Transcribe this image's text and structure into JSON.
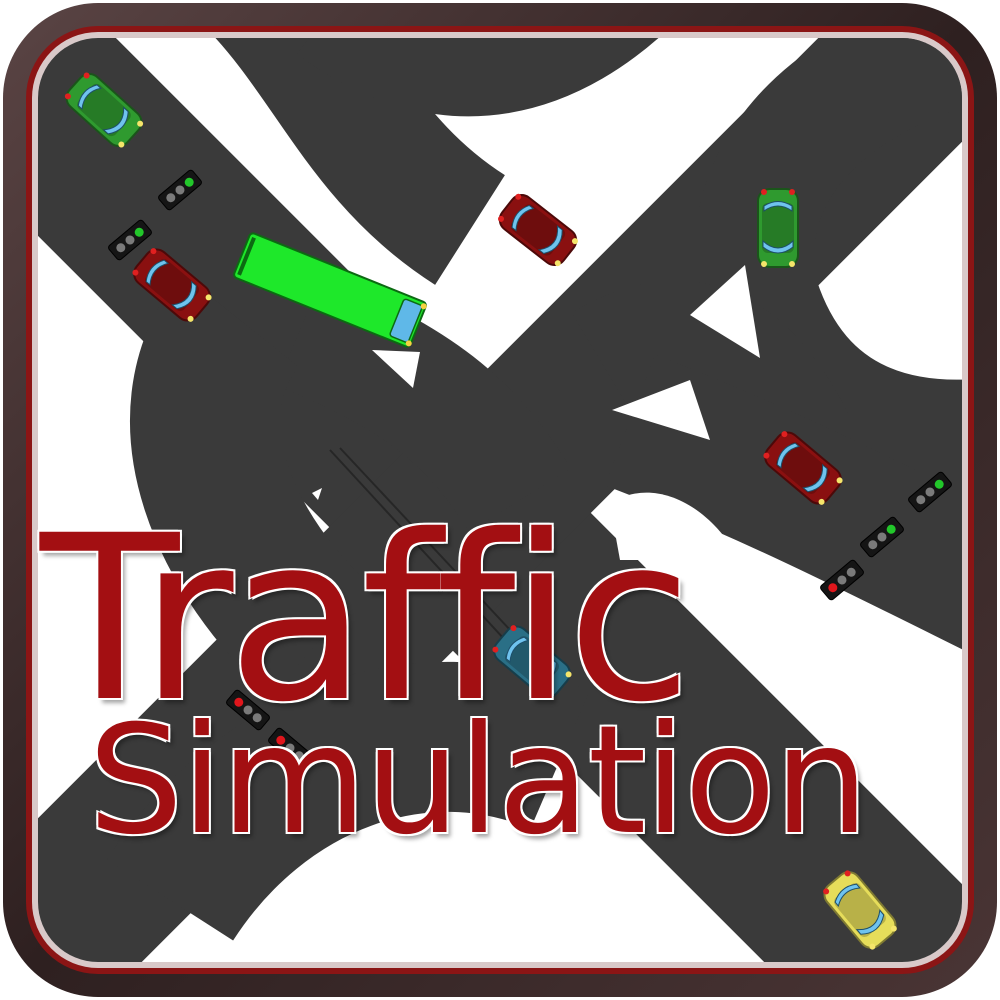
{
  "title": {
    "line1": "Traffic",
    "line2": "Simulation"
  },
  "colors": {
    "frame": "#3b2a2a",
    "frame_inner": "#8b1515",
    "road": "#3a3a3a",
    "background": "#ffffff",
    "title": "#a30f12",
    "light_green": "#22c72a",
    "light_red": "#e0161c",
    "light_off": "#7a7a7a"
  },
  "vehicles": [
    {
      "kind": "car",
      "color": "#2f9a2f",
      "name": "green-car"
    },
    {
      "kind": "car",
      "color": "#8a1010",
      "name": "red-car"
    },
    {
      "kind": "bus",
      "color": "#1ee82a",
      "name": "green-bus"
    },
    {
      "kind": "car",
      "color": "#8a1010",
      "name": "red-car"
    },
    {
      "kind": "car",
      "color": "#2f9a2f",
      "name": "green-car"
    },
    {
      "kind": "car",
      "color": "#8a1010",
      "name": "red-car"
    },
    {
      "kind": "car",
      "color": "#2a6f86",
      "name": "blue-car"
    },
    {
      "kind": "car",
      "color": "#e6dd5a",
      "name": "yellow-car"
    }
  ],
  "traffic_lights": [
    {
      "state": "green"
    },
    {
      "state": "green"
    },
    {
      "state": "green"
    },
    {
      "state": "green"
    },
    {
      "state": "red"
    },
    {
      "state": "red"
    },
    {
      "state": "red"
    }
  ]
}
